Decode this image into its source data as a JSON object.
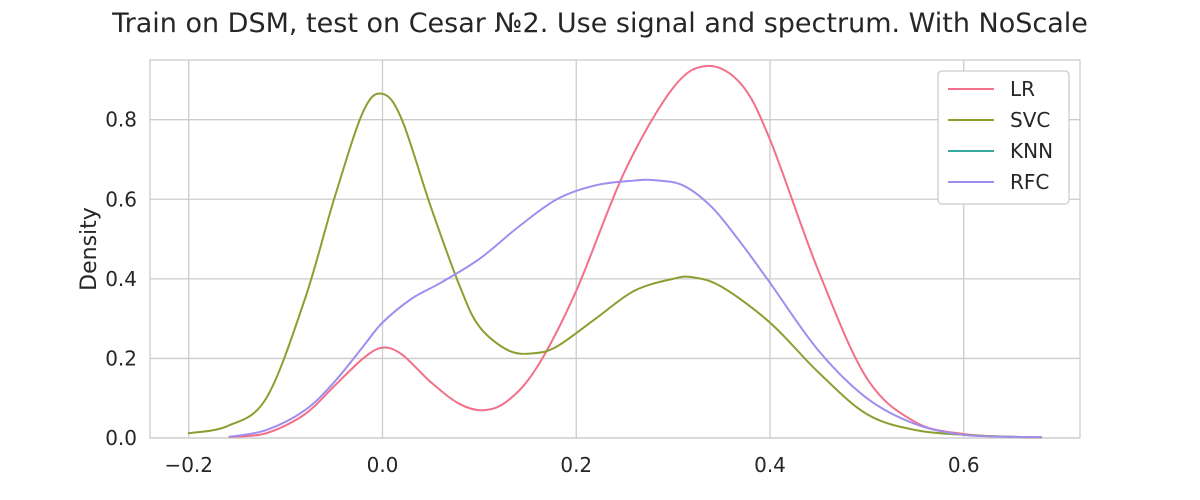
{
  "chart_data": {
    "type": "line",
    "title": "Train on DSM, test on Cesar №2. Use signal and spectrum. With NoScale",
    "xlabel": "",
    "ylabel": "Density",
    "xlim": [
      -0.24,
      0.72
    ],
    "ylim": [
      0,
      0.95
    ],
    "xticks": [
      -0.2,
      0.0,
      0.2,
      0.4,
      0.6
    ],
    "xtick_labels": [
      "−0.2",
      "0.0",
      "0.2",
      "0.4",
      "0.6"
    ],
    "yticks": [
      0.0,
      0.2,
      0.4,
      0.6,
      0.8
    ],
    "ytick_labels": [
      "0.0",
      "0.2",
      "0.4",
      "0.6",
      "0.8"
    ],
    "grid": true,
    "legend_position": "top-right",
    "series": [
      {
        "name": "LR",
        "color": "#f2708a",
        "x": [
          -0.158,
          -0.12,
          -0.08,
          -0.05,
          -0.02,
          0.0,
          0.02,
          0.05,
          0.08,
          0.105,
          0.13,
          0.16,
          0.2,
          0.25,
          0.3,
          0.335,
          0.37,
          0.4,
          0.45,
          0.5,
          0.55,
          0.6,
          0.65,
          0.68
        ],
        "y": [
          0.003,
          0.012,
          0.06,
          0.13,
          0.2,
          0.227,
          0.21,
          0.14,
          0.085,
          0.07,
          0.095,
          0.18,
          0.37,
          0.67,
          0.88,
          0.935,
          0.89,
          0.75,
          0.42,
          0.15,
          0.04,
          0.01,
          0.003,
          0.002
        ]
      },
      {
        "name": "SVC",
        "color": "#8a9f30",
        "x": [
          -0.2,
          -0.16,
          -0.12,
          -0.08,
          -0.05,
          -0.02,
          0.0,
          0.02,
          0.05,
          0.08,
          0.1,
          0.13,
          0.156,
          0.18,
          0.22,
          0.26,
          0.3,
          0.32,
          0.35,
          0.4,
          0.45,
          0.5,
          0.55,
          0.6,
          0.65,
          0.68
        ],
        "y": [
          0.012,
          0.03,
          0.1,
          0.35,
          0.6,
          0.82,
          0.865,
          0.8,
          0.58,
          0.38,
          0.28,
          0.22,
          0.213,
          0.23,
          0.3,
          0.37,
          0.4,
          0.404,
          0.38,
          0.29,
          0.165,
          0.06,
          0.02,
          0.008,
          0.003,
          0.002
        ]
      },
      {
        "name": "KNN",
        "color": "#35a99f",
        "x": [],
        "y": []
      },
      {
        "name": "RFC",
        "color": "#9e8ef0",
        "x": [
          -0.158,
          -0.12,
          -0.08,
          -0.05,
          -0.02,
          0.0,
          0.03,
          0.06,
          0.1,
          0.14,
          0.18,
          0.22,
          0.26,
          0.28,
          0.31,
          0.34,
          0.37,
          0.4,
          0.45,
          0.5,
          0.55,
          0.6,
          0.65,
          0.68
        ],
        "y": [
          0.003,
          0.02,
          0.07,
          0.14,
          0.23,
          0.29,
          0.35,
          0.39,
          0.45,
          0.53,
          0.6,
          0.635,
          0.647,
          0.648,
          0.635,
          0.58,
          0.49,
          0.39,
          0.22,
          0.1,
          0.035,
          0.008,
          0.003,
          0.002
        ]
      }
    ]
  }
}
